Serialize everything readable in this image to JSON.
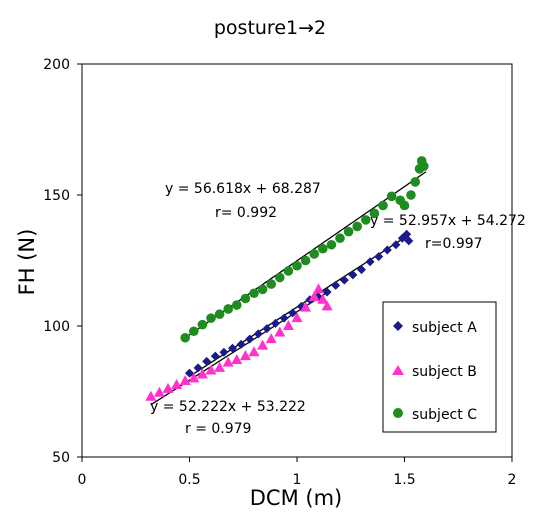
{
  "chart_data": {
    "type": "scatter",
    "title": "posture1→2",
    "xlabel": "DCM (m)",
    "ylabel": "FH (N)",
    "xlim": [
      0,
      2
    ],
    "ylim": [
      50,
      200
    ],
    "x_ticks": [
      "0",
      "0.5",
      "1",
      "1.5",
      "2"
    ],
    "y_ticks": [
      "50",
      "100",
      "150",
      "200"
    ],
    "grid": false,
    "legend_position": "bottom-right",
    "series": [
      {
        "name": "subject A",
        "marker": "diamond",
        "color": "#1a1a8c",
        "points": [
          [
            0.5,
            82
          ],
          [
            0.54,
            84
          ],
          [
            0.58,
            86.5
          ],
          [
            0.62,
            88.5
          ],
          [
            0.66,
            90
          ],
          [
            0.7,
            91.5
          ],
          [
            0.74,
            93
          ],
          [
            0.78,
            95
          ],
          [
            0.82,
            97
          ],
          [
            0.86,
            99
          ],
          [
            0.9,
            101
          ],
          [
            0.94,
            103
          ],
          [
            0.98,
            105
          ],
          [
            1.02,
            107.5
          ],
          [
            1.06,
            110
          ],
          [
            1.1,
            111
          ],
          [
            1.14,
            113
          ],
          [
            1.18,
            115.5
          ],
          [
            1.22,
            117.5
          ],
          [
            1.26,
            119.5
          ],
          [
            1.3,
            121.5
          ],
          [
            1.34,
            124.5
          ],
          [
            1.38,
            126.5
          ],
          [
            1.42,
            129
          ],
          [
            1.46,
            131
          ],
          [
            1.49,
            133.5
          ],
          [
            1.51,
            135
          ],
          [
            1.52,
            132.5
          ]
        ]
      },
      {
        "name": "subject B",
        "marker": "triangle",
        "color": "#ff33cc",
        "points": [
          [
            0.32,
            73
          ],
          [
            0.36,
            74.5
          ],
          [
            0.4,
            76
          ],
          [
            0.44,
            77.5
          ],
          [
            0.48,
            79
          ],
          [
            0.52,
            80
          ],
          [
            0.56,
            81.5
          ],
          [
            0.6,
            83
          ],
          [
            0.64,
            84
          ],
          [
            0.68,
            86
          ],
          [
            0.72,
            87
          ],
          [
            0.76,
            88.5
          ],
          [
            0.8,
            90
          ],
          [
            0.84,
            92.5
          ],
          [
            0.88,
            95
          ],
          [
            0.92,
            97.5
          ],
          [
            0.96,
            100
          ],
          [
            1.0,
            103
          ],
          [
            1.04,
            107
          ],
          [
            1.08,
            111
          ],
          [
            1.1,
            114
          ],
          [
            1.12,
            110
          ],
          [
            1.14,
            107.5
          ]
        ]
      },
      {
        "name": "subject C",
        "marker": "circle",
        "color": "#1e8c1e",
        "points": [
          [
            0.48,
            95.5
          ],
          [
            0.52,
            98
          ],
          [
            0.56,
            100.5
          ],
          [
            0.6,
            103
          ],
          [
            0.64,
            104.5
          ],
          [
            0.68,
            106.5
          ],
          [
            0.72,
            108
          ],
          [
            0.76,
            110.5
          ],
          [
            0.8,
            112.5
          ],
          [
            0.84,
            114
          ],
          [
            0.88,
            116
          ],
          [
            0.92,
            118.5
          ],
          [
            0.96,
            121
          ],
          [
            1.0,
            123
          ],
          [
            1.04,
            125
          ],
          [
            1.08,
            127.5
          ],
          [
            1.12,
            129.5
          ],
          [
            1.16,
            131
          ],
          [
            1.2,
            133.5
          ],
          [
            1.24,
            136
          ],
          [
            1.28,
            138
          ],
          [
            1.32,
            140.5
          ],
          [
            1.36,
            143
          ],
          [
            1.4,
            146
          ],
          [
            1.44,
            149.5
          ],
          [
            1.48,
            148
          ],
          [
            1.5,
            146
          ],
          [
            1.53,
            150
          ],
          [
            1.55,
            155
          ],
          [
            1.57,
            160
          ],
          [
            1.58,
            163
          ],
          [
            1.59,
            161
          ]
        ]
      }
    ],
    "trendlines": [
      {
        "slope": 56.618,
        "intercept": 68.287,
        "x_range": [
          0.48,
          1.6
        ]
      },
      {
        "slope": 52.957,
        "intercept": 54.272,
        "x_range": [
          0.5,
          1.52
        ]
      },
      {
        "slope": 52.222,
        "intercept": 53.222,
        "x_range": [
          0.32,
          1.14
        ]
      }
    ],
    "annotations": [
      {
        "line1": "y = 56.618x + 68.287",
        "line2": "r= 0.992"
      },
      {
        "line1": "y = 52.957x + 54.272",
        "line2": "r=0.997"
      },
      {
        "line1": "y = 52.222x + 53.222",
        "line2": "r = 0.979"
      }
    ]
  }
}
